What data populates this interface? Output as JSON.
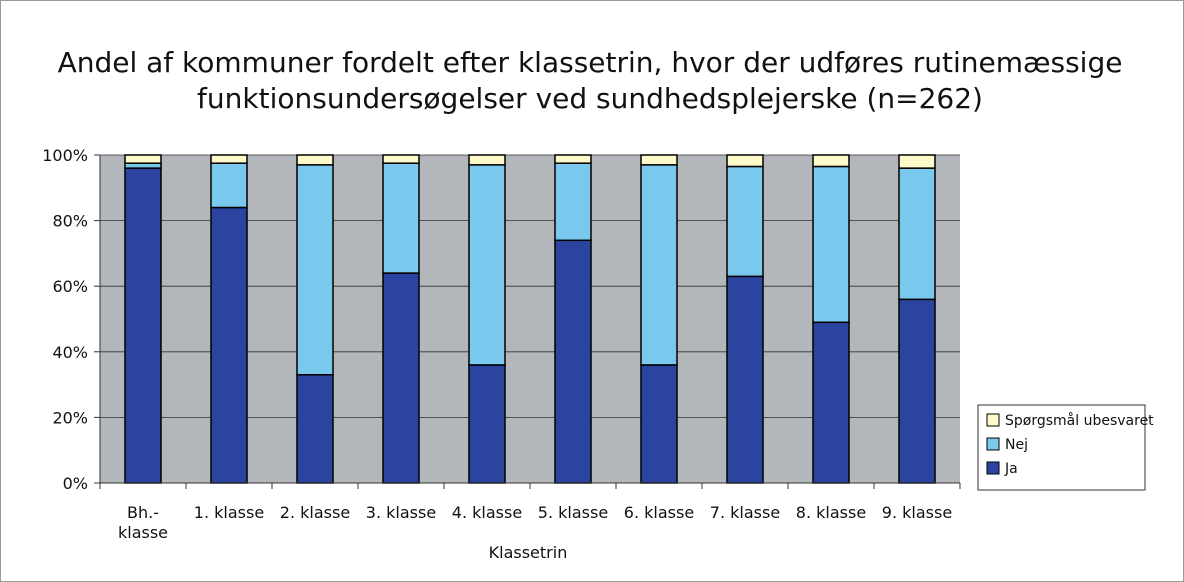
{
  "chart_data": {
    "type": "stacked_bar",
    "title": "Andel af kommuner fordelt efter klassetrin, hvor der udføres rutinemæssige\nfunktionsundersøgelser ved sundhedsplejerske (n=262)",
    "x_label": "Klassetrin",
    "categories": [
      "Bh.-\nklasse",
      "1. klasse",
      "2. klasse",
      "3. klasse",
      "4. klasse",
      "5. klasse",
      "6. klasse",
      "7. klasse",
      "8. klasse",
      "9. klasse"
    ],
    "series": [
      {
        "name": "Ja",
        "color": "#2a44a0",
        "values": [
          96,
          84,
          33,
          64,
          36,
          74,
          36,
          63,
          49,
          56
        ]
      },
      {
        "name": "Nej",
        "color": "#7ac8ee",
        "values": [
          1.5,
          13.5,
          64,
          33.5,
          61,
          23.5,
          61,
          33.5,
          47.5,
          40
        ]
      },
      {
        "name": "Spørgsmål ubesvaret",
        "color": "#fdf9c8",
        "values": [
          2.5,
          2.5,
          3,
          2.5,
          3,
          2.5,
          3,
          3.5,
          3.5,
          4
        ]
      }
    ],
    "ylim": [
      0,
      100
    ],
    "yticks": [
      {
        "value": 0,
        "label": "0%"
      },
      {
        "value": 20,
        "label": "20%"
      },
      {
        "value": 40,
        "label": "40%"
      },
      {
        "value": 60,
        "label": "60%"
      },
      {
        "value": 80,
        "label": "80%"
      },
      {
        "value": 100,
        "label": "100%"
      }
    ],
    "grid": true,
    "legend": "right"
  }
}
